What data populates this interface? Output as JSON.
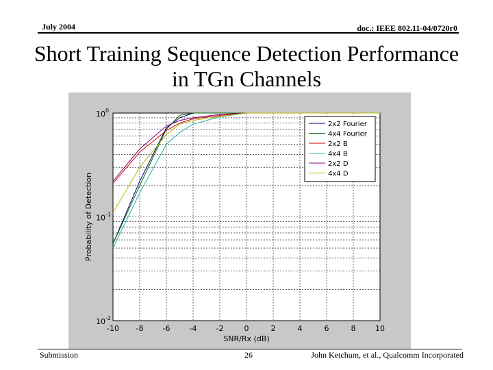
{
  "header": {
    "date": "July 2004",
    "doc_id": "doc.: IEEE 802.11-04/0720r0"
  },
  "slide": {
    "title_line1": "Short Training Sequence Detection Performance",
    "title_line2": "in TGn Channels"
  },
  "footer": {
    "left": "Submission",
    "page": "26",
    "right": "John Ketchum, et al., Qualcomm Incorporated"
  },
  "colors": {
    "figure_bg": "#c8c8c8",
    "axes_bg": "#ffffff"
  },
  "chart_data": {
    "type": "line",
    "xlabel": "SNR/Rx (dB)",
    "ylabel": "Probability of Detection",
    "xlim": [
      -10,
      10
    ],
    "ylim": [
      0.01,
      1
    ],
    "yscale": "log",
    "grid": true,
    "legend_position": "top-right",
    "x_ticks": [
      "-10",
      "-8",
      "-6",
      "-4",
      "-2",
      "0",
      "2",
      "4",
      "6",
      "8",
      "10"
    ],
    "y_ticks": [
      {
        "base": "10",
        "exp": "0",
        "value": 1
      },
      {
        "base": "10",
        "exp": "-1",
        "value": 0.1
      },
      {
        "base": "10",
        "exp": "-2",
        "value": 0.01
      }
    ],
    "x": [
      -10,
      -8,
      -6,
      -5,
      -4,
      -2,
      0,
      2,
      4,
      6,
      8,
      10
    ],
    "series": [
      {
        "name": "2x2 Fourier",
        "color": "#000080",
        "values": [
          0.055,
          0.22,
          0.72,
          0.9,
          1.0,
          1.0,
          1.0,
          1.0,
          1.0,
          1.0,
          1.0,
          1.0
        ]
      },
      {
        "name": "4x4 Fourier",
        "color": "#006400",
        "values": [
          0.055,
          0.2,
          0.7,
          0.95,
          1.0,
          1.0,
          1.0,
          1.0,
          1.0,
          1.0,
          1.0,
          1.0
        ]
      },
      {
        "name": "2x2 B",
        "color": "#cc0000",
        "values": [
          0.21,
          0.42,
          0.68,
          0.8,
          0.88,
          0.95,
          1.0,
          1.0,
          1.0,
          1.0,
          1.0,
          1.0
        ]
      },
      {
        "name": "4x4 B",
        "color": "#20b2aa",
        "values": [
          0.05,
          0.17,
          0.5,
          0.65,
          0.78,
          0.92,
          1.0,
          1.0,
          1.0,
          1.0,
          1.0,
          1.0
        ]
      },
      {
        "name": "2x2 D",
        "color": "#800080",
        "values": [
          0.22,
          0.45,
          0.75,
          0.85,
          0.9,
          0.97,
          1.0,
          1.0,
          1.0,
          1.0,
          1.0,
          1.0
        ]
      },
      {
        "name": "4x4 D",
        "color": "#b8b800",
        "values": [
          0.11,
          0.3,
          0.62,
          0.78,
          0.85,
          0.93,
          1.0,
          1.0,
          1.0,
          1.0,
          1.0,
          1.0
        ]
      }
    ]
  }
}
